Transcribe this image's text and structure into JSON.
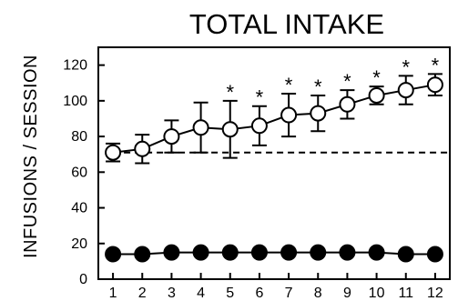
{
  "chart_data": {
    "type": "line",
    "title": "TOTAL INTAKE",
    "xlabel": "",
    "ylabel": "INFUSIONS / SESSION",
    "xlim": [
      0.5,
      12.5
    ],
    "ylim": [
      0,
      130
    ],
    "x_ticks": [
      1,
      2,
      3,
      4,
      5,
      6,
      7,
      8,
      9,
      10,
      11,
      12
    ],
    "y_ticks": [
      0,
      20,
      40,
      60,
      80,
      100,
      120
    ],
    "grid": false,
    "legend": "none",
    "baseline": {
      "value": 71,
      "style": "dashed",
      "from_x": 1
    },
    "series": [
      {
        "marker": "open-circle",
        "x": [
          1,
          2,
          3,
          4,
          5,
          6,
          7,
          8,
          9,
          10,
          11,
          12
        ],
        "y": [
          71,
          73,
          80,
          85,
          84,
          86,
          92,
          93,
          98,
          103,
          106,
          109
        ],
        "error": [
          5,
          8,
          9,
          14,
          16,
          11,
          12,
          10,
          8,
          5,
          8,
          6
        ],
        "significant": [
          false,
          false,
          false,
          false,
          true,
          true,
          true,
          true,
          true,
          true,
          true,
          true
        ],
        "significance_marker": "*",
        "color": "#000000",
        "fill": "#ffffff"
      },
      {
        "marker": "filled-circle",
        "x": [
          1,
          2,
          3,
          4,
          5,
          6,
          7,
          8,
          9,
          10,
          11,
          12
        ],
        "y": [
          14,
          14,
          15,
          15,
          15,
          15,
          15,
          15,
          15,
          15,
          14,
          14
        ],
        "error": [
          0,
          0,
          0,
          0,
          0,
          0,
          0,
          0,
          0,
          0,
          0,
          0
        ],
        "color": "#000000",
        "fill": "#000000"
      }
    ]
  }
}
